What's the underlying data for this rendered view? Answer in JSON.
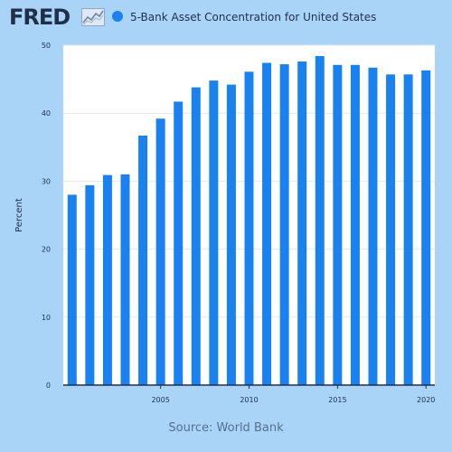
{
  "header": {
    "logo_text": "FRED",
    "logo_icon": "line-graph-icon",
    "series_title": "5-Bank Asset Concentration for United States"
  },
  "colors": {
    "background": "#aad4f7",
    "plot_background": "#ffffff",
    "bar": "#1a82f0",
    "text": "#1f2f4a"
  },
  "footer": {
    "source": "Source: World Bank"
  },
  "chart_data": {
    "type": "bar",
    "title": "5-Bank Asset Concentration for United States",
    "xlabel": "",
    "ylabel": "Percent",
    "ylim": [
      0,
      50
    ],
    "yticks": [
      0,
      10,
      20,
      30,
      40,
      50
    ],
    "xticks": [
      2005,
      2010,
      2015,
      2020
    ],
    "grid": true,
    "legend": "top-left",
    "x": [
      2000,
      2001,
      2002,
      2003,
      2004,
      2005,
      2006,
      2007,
      2008,
      2009,
      2010,
      2011,
      2012,
      2013,
      2014,
      2015,
      2016,
      2017,
      2018,
      2019,
      2020
    ],
    "series": [
      {
        "name": "5-Bank Asset Concentration for United States",
        "values": [
          28.0,
          29.4,
          30.9,
          31.0,
          36.7,
          39.2,
          41.7,
          43.8,
          44.8,
          44.2,
          46.1,
          47.4,
          47.2,
          47.6,
          48.4,
          47.1,
          47.1,
          46.7,
          45.7,
          45.7,
          46.3
        ]
      }
    ]
  }
}
